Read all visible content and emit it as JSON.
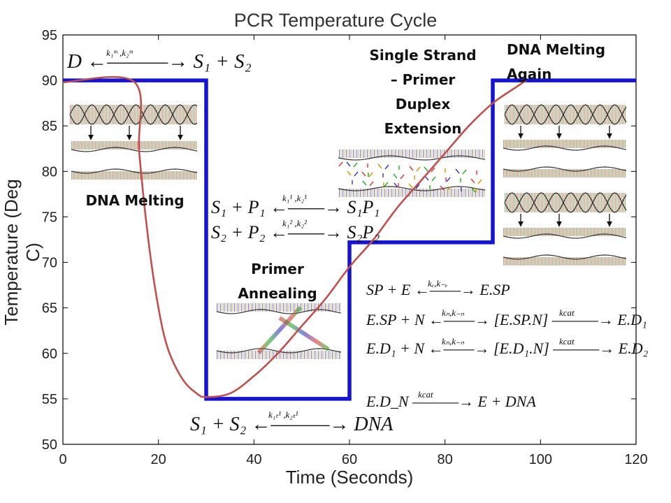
{
  "chart_data": {
    "type": "line",
    "title": "PCR Temperature Cycle",
    "xlabel": "Time (Seconds)",
    "ylabel": "Temperature (Deg C)",
    "xlim": [
      0,
      120
    ],
    "ylim": [
      50,
      95
    ],
    "x_ticks": [
      0,
      20,
      40,
      60,
      80,
      100,
      120
    ],
    "y_ticks": [
      50,
      55,
      60,
      65,
      70,
      75,
      80,
      85,
      90,
      95
    ],
    "grid": false,
    "series": [
      {
        "style": "step",
        "color": "#1414d2",
        "x": [
          0,
          30,
          30,
          60,
          60,
          90,
          90,
          120
        ],
        "y": [
          90,
          90,
          55,
          55,
          72.2,
          72.2,
          90,
          90
        ]
      },
      {
        "style": "curve",
        "color": "#c0504d",
        "x": [
          0,
          15,
          16,
          18,
          20,
          22,
          25,
          28,
          30,
          35,
          40,
          45,
          50,
          55,
          60,
          65,
          70,
          75,
          80,
          85,
          90,
          95,
          97
        ],
        "y": [
          89.8,
          89.8,
          82,
          72,
          65,
          60.5,
          57.2,
          55.6,
          55.2,
          55.6,
          57.5,
          60,
          63,
          66,
          69.5,
          72.5,
          76,
          79,
          82,
          85,
          87.5,
          89.3,
          90
        ]
      }
    ],
    "annotations": {
      "dna_melting": "DNA Melting",
      "primer_annealing": [
        "Primer",
        "Annealing"
      ],
      "extension": [
        "Single Strand",
        "– Primer",
        "Duplex",
        "Extension"
      ],
      "melting_again": [
        "DNA Melting",
        "Again"
      ]
    }
  },
  "equations": {
    "melting": {
      "left": "D",
      "right": "S₁ + S₂",
      "rate": "k₁ᵐ ,k₂ᵐ"
    },
    "annealing_1": {
      "left": "S₁ + P₁",
      "right": "S₁P₁",
      "rate": "k₁¹ ,k₂¹"
    },
    "annealing_2": {
      "left": "S₂ + P₂",
      "right": "S₂P₂",
      "rate": "k₁² ,k₂²"
    },
    "ext_1": {
      "left": "SP + E",
      "right": "E.SP",
      "rate": "kₑ,k₋ₑ"
    },
    "ext_2": {
      "left": "E.SP + N",
      "mid": "[E.SP.N]",
      "right": "E.D₁",
      "rate1": "kₙ,k₋ₙ",
      "rate2": "kcat"
    },
    "ext_3": {
      "left": "E.D₁ + N",
      "mid": "[E.D₁.N]",
      "right": "E.D₂",
      "rate1": "kₙ,k₋ₙ",
      "rate2": "kcat"
    },
    "ext_n": {
      "left": "E.D_N",
      "right": "E + DNA",
      "rate": "kcat"
    },
    "renature": {
      "left": "S₁ + S₂",
      "right": "DNA",
      "rate": "k₁ₜ¹ ,k₂ₜ¹"
    }
  }
}
